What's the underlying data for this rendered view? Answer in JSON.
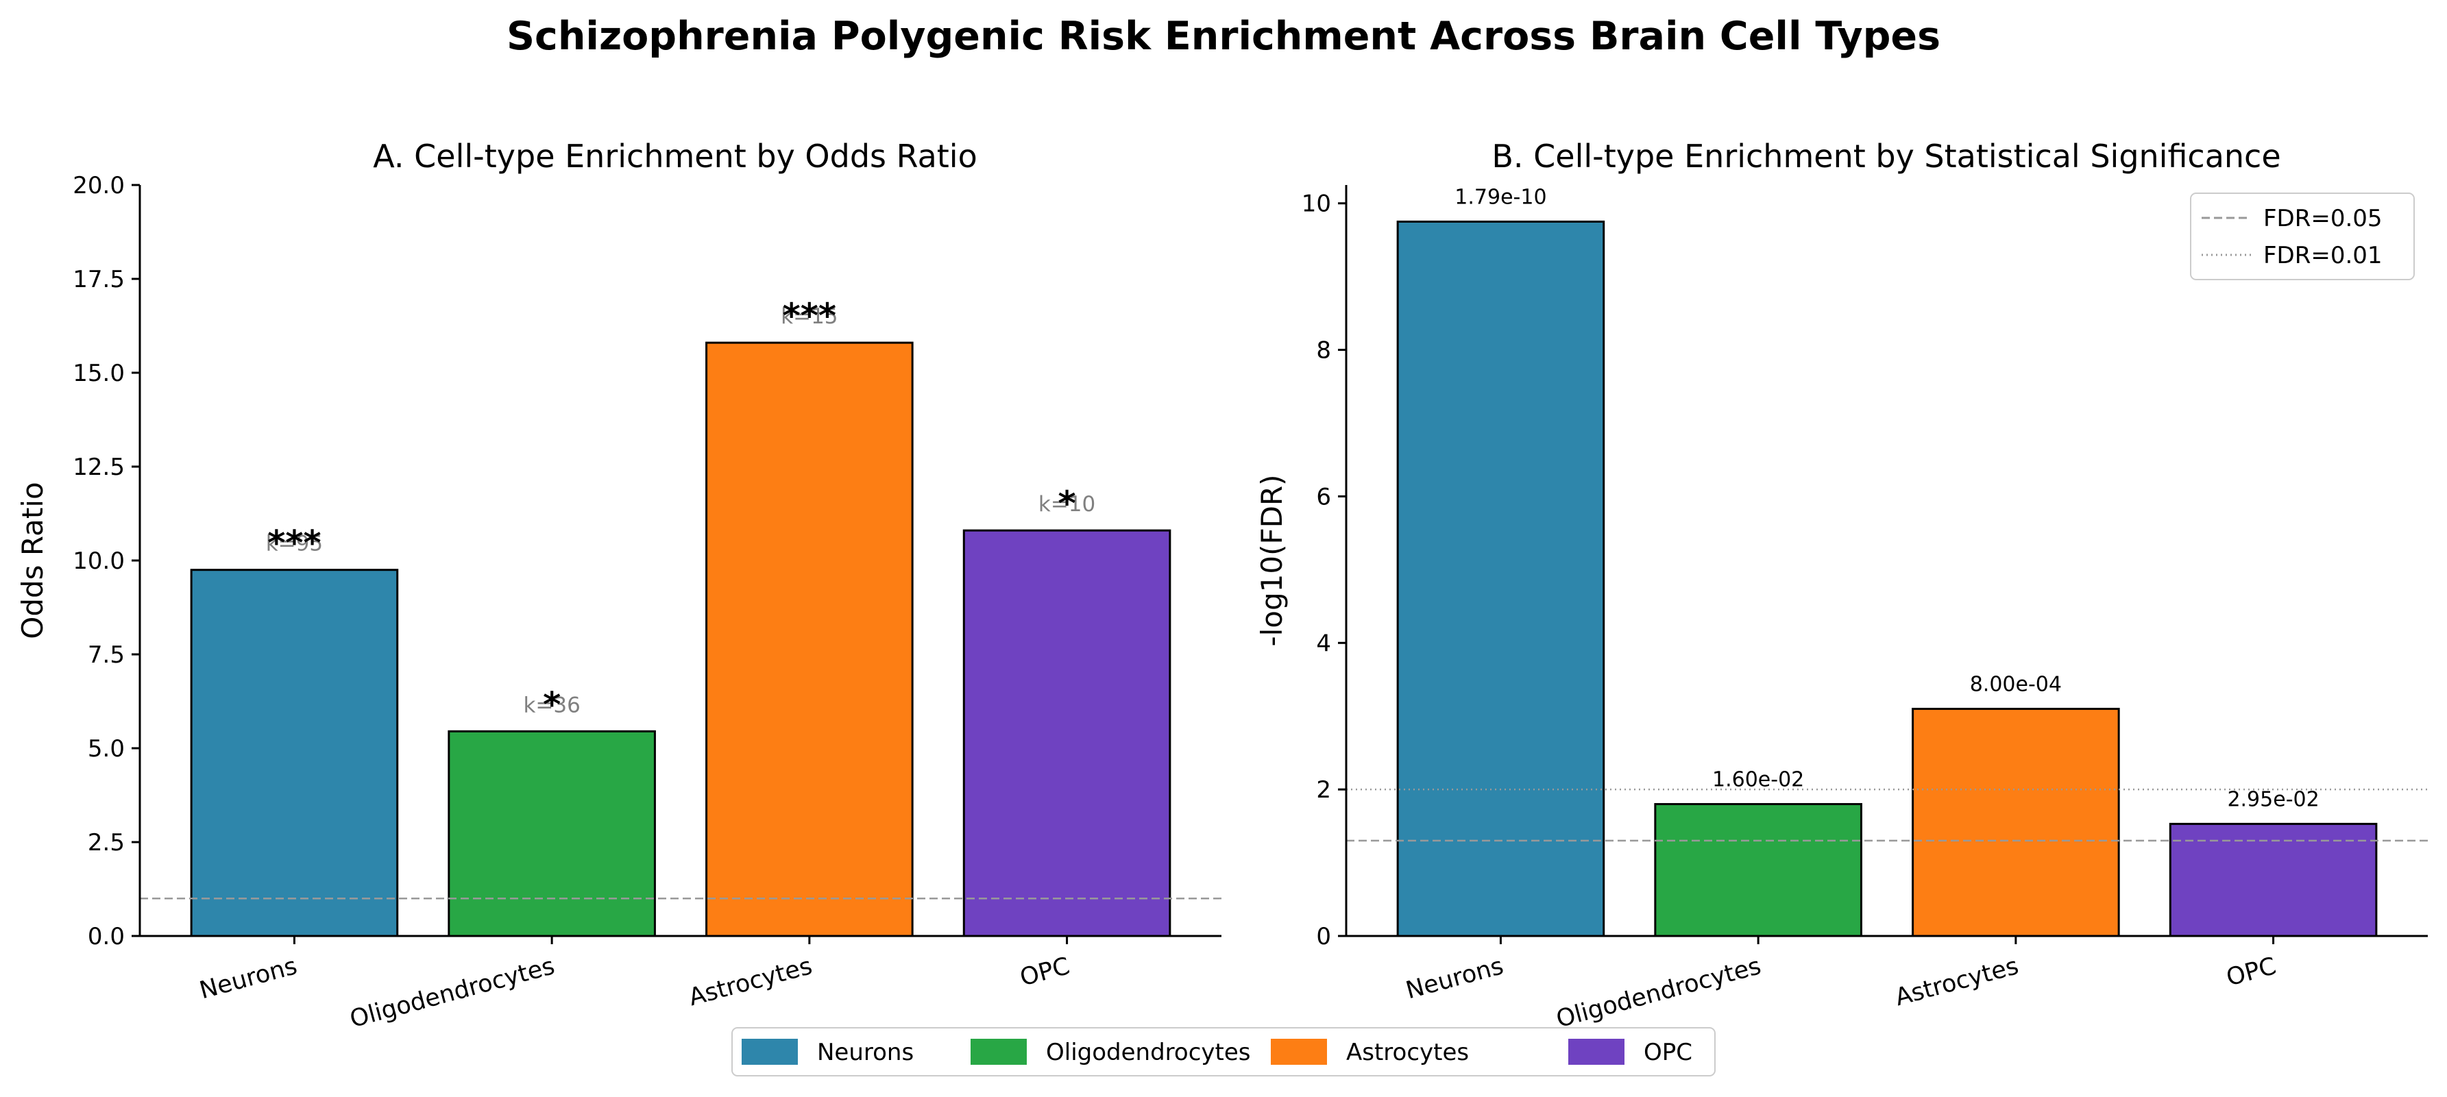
{
  "figure": {
    "title": "Schizophrenia Polygenic Risk Enrichment Across Brain Cell Types"
  },
  "legend": {
    "placement": "bottom-center",
    "entries": [
      "Neurons",
      "Oligodendrocytes",
      "Astrocytes",
      "OPC"
    ]
  },
  "colors": {
    "Neurons": "#2E86AB",
    "Oligodendrocytes": "#28A745",
    "Astrocytes": "#FD7E14",
    "OPC": "#6F42C1"
  },
  "chart_data": [
    {
      "type": "bar",
      "title": "A. Cell-type Enrichment by Odds Ratio",
      "xlabel": "",
      "ylabel": "Odds Ratio",
      "categories": [
        "Neurons",
        "Oligodendrocytes",
        "Astrocytes",
        "OPC"
      ],
      "values": [
        9.75,
        5.45,
        15.8,
        10.8
      ],
      "k_labels": [
        "k=95",
        "k=36",
        "k=15",
        "k=10"
      ],
      "significance": [
        "***",
        "*",
        "***",
        "*"
      ],
      "ylim": [
        0,
        20
      ],
      "yticks": [
        "0.0",
        "2.5",
        "5.0",
        "7.5",
        "10.0",
        "12.5",
        "15.0",
        "17.5",
        "20.0"
      ],
      "reference_line": 1.0,
      "grid": false
    },
    {
      "type": "bar",
      "title": "B. Cell-type Enrichment by Statistical Significance",
      "xlabel": "",
      "ylabel": "-log10(FDR)",
      "categories": [
        "Neurons",
        "Oligodendrocytes",
        "Astrocytes",
        "OPC"
      ],
      "values": [
        9.75,
        1.8,
        3.1,
        1.53
      ],
      "fdr_labels": [
        "1.79e-10",
        "1.60e-02",
        "8.00e-04",
        "2.95e-02"
      ],
      "ylim": [
        0,
        10.25
      ],
      "yticks": [
        "0",
        "2",
        "4",
        "6",
        "8",
        "10"
      ],
      "thresholds": [
        {
          "label": "FDR=0.05",
          "value": 1.301,
          "style": "dashed"
        },
        {
          "label": "FDR=0.01",
          "value": 2.0,
          "style": "dotted"
        }
      ],
      "legend_placement": "top-right",
      "grid": false
    }
  ]
}
